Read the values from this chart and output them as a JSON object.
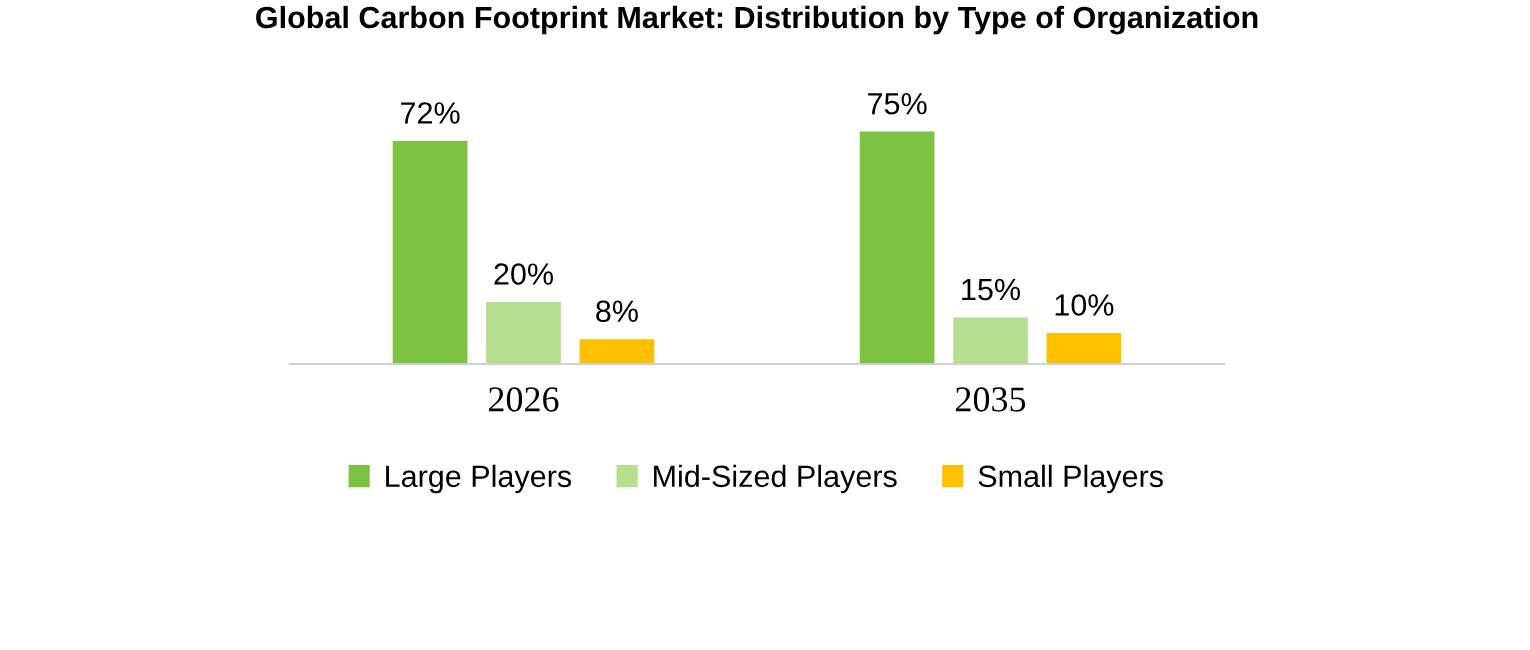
{
  "chart_data": {
    "type": "bar",
    "title": "Global Carbon Footprint Market: Distribution by Type of Organization",
    "categories": [
      "2026",
      "2035"
    ],
    "series": [
      {
        "name": "Large Players",
        "color": "#7dc242",
        "values": [
          72,
          75
        ],
        "value_labels": [
          "72%",
          "75%"
        ]
      },
      {
        "name": "Mid-Sized Players",
        "color": "#b5df8f",
        "values": [
          20,
          15
        ],
        "value_labels": [
          "20%",
          "15%"
        ]
      },
      {
        "name": "Small Players",
        "color": "#ffc000",
        "values": [
          8,
          10
        ],
        "value_labels": [
          "8%",
          "10%"
        ]
      }
    ],
    "legend": "bottom",
    "grid": false
  }
}
